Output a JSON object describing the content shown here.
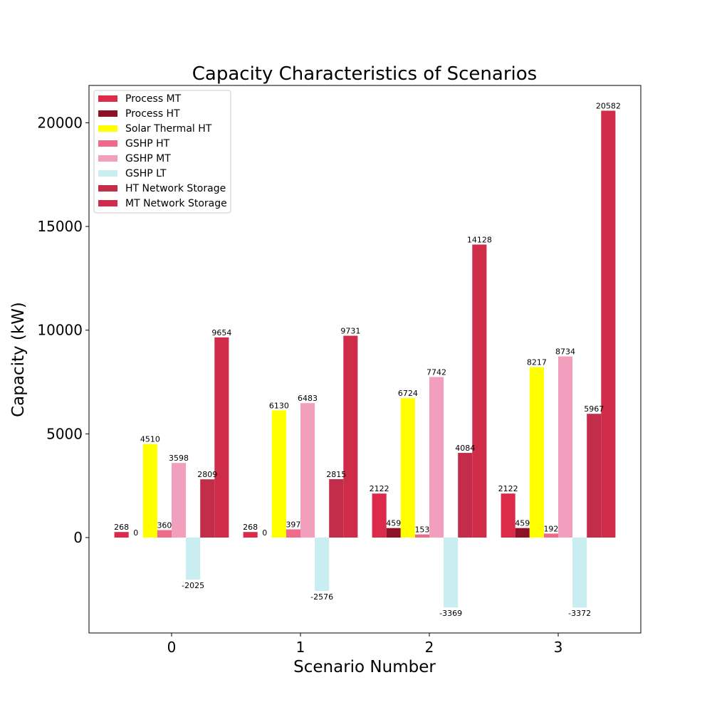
{
  "chart_data": {
    "type": "bar",
    "title": "Capacity Characteristics of Scenarios",
    "xlabel": "Scenario Number",
    "ylabel": "Capacity (kW)",
    "categories": [
      "0",
      "1",
      "2",
      "3"
    ],
    "ylim": [
      -4600,
      21800
    ],
    "yticks": [
      0,
      5000,
      10000,
      15000,
      20000
    ],
    "ytick_labels": [
      "0",
      "5000",
      "10000",
      "15000",
      "20000"
    ],
    "grid": false,
    "legend_position": "top-left",
    "series": [
      {
        "name": "Process MT",
        "color": "#dc2a4b",
        "values": [
          268,
          268,
          2122,
          2122
        ]
      },
      {
        "name": "Process HT",
        "color": "#8e1128",
        "values": [
          0,
          0,
          459,
          459
        ]
      },
      {
        "name": "Solar Thermal HT",
        "color": "#ffff00",
        "values": [
          4510,
          6130,
          6724,
          8217
        ]
      },
      {
        "name": "GSHP HT",
        "color": "#f06b8a",
        "values": [
          360,
          397,
          153,
          192
        ]
      },
      {
        "name": "GSHP MT",
        "color": "#f29fbd",
        "values": [
          3598,
          6483,
          7742,
          8734
        ]
      },
      {
        "name": "GSHP LT",
        "color": "#c9edf0",
        "values": [
          -2025,
          -2576,
          -3369,
          -3372
        ]
      },
      {
        "name": "HT Network Storage",
        "color": "#c42d4a",
        "values": [
          2809,
          2815,
          4084,
          5967
        ]
      },
      {
        "name": "MT Network Storage",
        "color": "#cf2c4a",
        "values": [
          9654,
          9731,
          14128,
          20582
        ]
      }
    ]
  }
}
